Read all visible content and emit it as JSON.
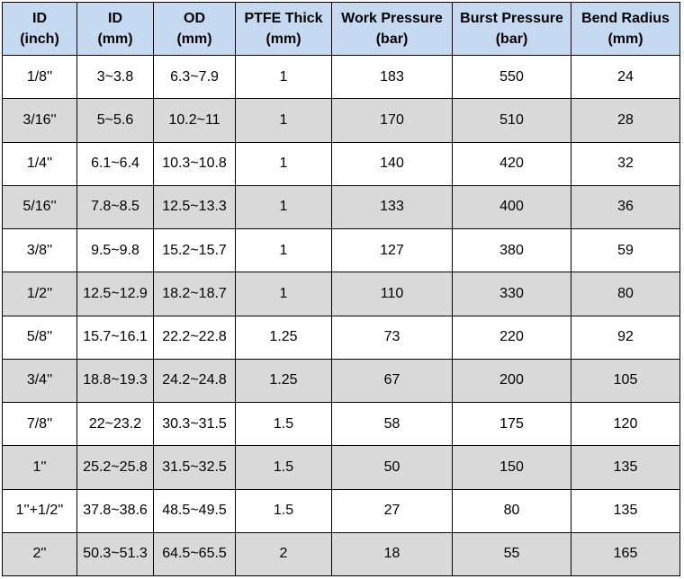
{
  "header": [
    {
      "line1": "ID",
      "line2": "(inch)"
    },
    {
      "line1": "ID",
      "line2": "(mm)"
    },
    {
      "line1": "OD",
      "line2": "(mm)"
    },
    {
      "line1": "PTFE Thick",
      "line2": "(mm)"
    },
    {
      "line1": "Work Pressure",
      "line2": "(bar)"
    },
    {
      "line1": "Burst Pressure",
      "line2": "(bar)"
    },
    {
      "line1": "Bend Radius",
      "line2": "(mm)"
    }
  ],
  "rows": [
    [
      "1/8''",
      "3~3.8",
      "6.3~7.9",
      "1",
      "183",
      "550",
      "24"
    ],
    [
      "3/16''",
      "5~5.6",
      "10.2~11",
      "1",
      "170",
      "510",
      "28"
    ],
    [
      "1/4''",
      "6.1~6.4",
      "10.3~10.8",
      "1",
      "140",
      "420",
      "32"
    ],
    [
      "5/16''",
      "7.8~8.5",
      "12.5~13.3",
      "1",
      "133",
      "400",
      "36"
    ],
    [
      "3/8''",
      "9.5~9.8",
      "15.2~15.7",
      "1",
      "127",
      "380",
      "59"
    ],
    [
      "1/2''",
      "12.5~12.9",
      "18.2~18.7",
      "1",
      "110",
      "330",
      "80"
    ],
    [
      "5/8''",
      "15.7~16.1",
      "22.2~22.8",
      "1.25",
      "73",
      "220",
      "92"
    ],
    [
      "3/4''",
      "18.8~19.3",
      "24.2~24.8",
      "1.25",
      "67",
      "200",
      "105"
    ],
    [
      "7/8''",
      "22~23.2",
      "30.3~31.5",
      "1.5",
      "58",
      "175",
      "120"
    ],
    [
      "1''",
      "25.2~25.8",
      "31.5~32.5",
      "1.5",
      "50",
      "150",
      "135"
    ],
    [
      "1''+1/2''",
      "37.8~38.6",
      "48.5~49.5",
      "1.5",
      "27",
      "80",
      "135"
    ],
    [
      "2''",
      "50.3~51.3",
      "64.5~65.5",
      "2",
      "18",
      "55",
      "165"
    ]
  ],
  "colors": {
    "header_bg": "#c5d9f1",
    "stripe_bg": "#d9d9d9",
    "border": "#000000"
  }
}
